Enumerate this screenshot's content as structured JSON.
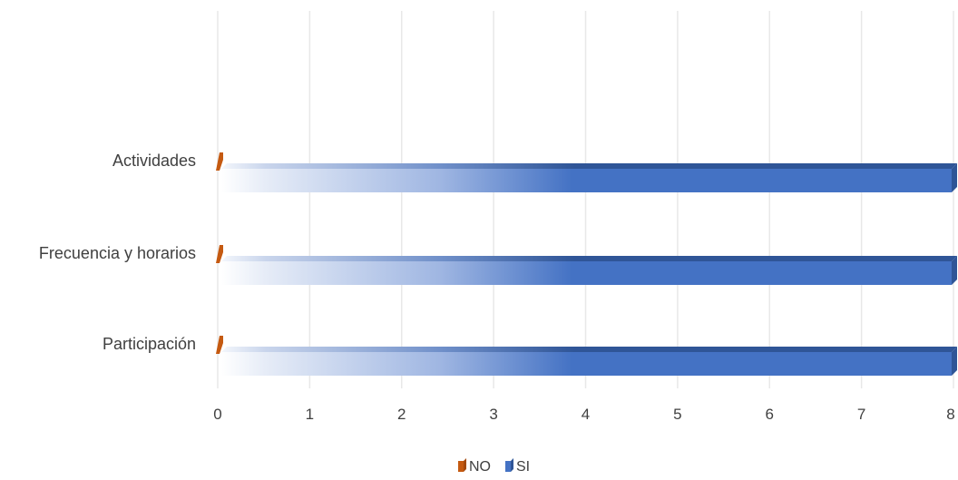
{
  "chart_data": {
    "type": "bar",
    "orientation": "horizontal",
    "categories": [
      "Participación",
      "Frecuencia y horarios",
      "Actividades"
    ],
    "series": [
      {
        "name": "NO",
        "values": [
          0,
          0,
          0
        ],
        "color": "#C55A11"
      },
      {
        "name": "SI",
        "values": [
          8,
          8,
          8
        ],
        "color": "#4472C4"
      }
    ],
    "x_ticks": [
      "0",
      "1",
      "2",
      "3",
      "4",
      "5",
      "6",
      "7",
      "8"
    ],
    "xlim": [
      0,
      8
    ],
    "title": "",
    "xlabel": "",
    "ylabel": "",
    "grid": "vertical",
    "legend_position": "bottom"
  }
}
